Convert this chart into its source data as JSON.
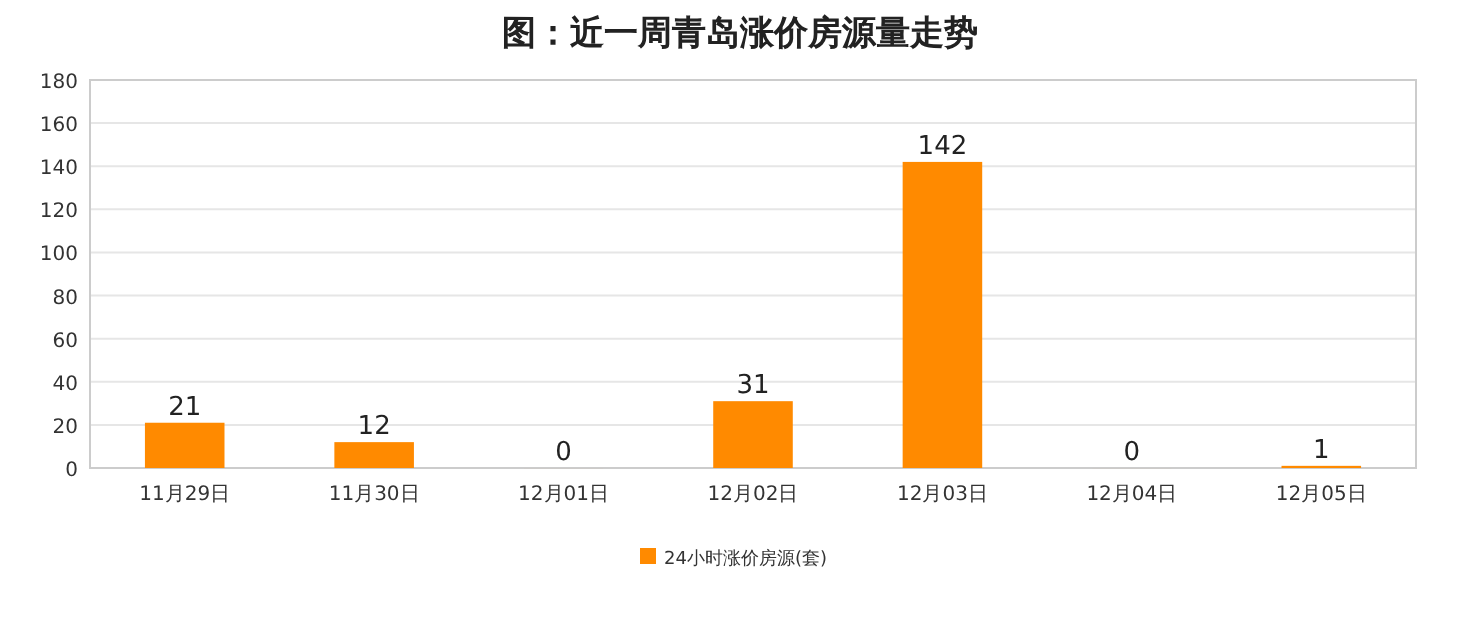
{
  "chart_data": {
    "type": "bar",
    "title": "图：近一周青岛涨价房源量走势",
    "categories": [
      "11月29日",
      "11月30日",
      "12月01日",
      "12月02日",
      "12月03日",
      "12月04日",
      "12月05日"
    ],
    "series": [
      {
        "name": "24小时涨价房源(套)",
        "color": "#ff8a00",
        "values": [
          21,
          12,
          0,
          31,
          142,
          0,
          1
        ]
      }
    ],
    "ylim": [
      0,
      180
    ],
    "yticks": [
      0,
      20,
      40,
      60,
      80,
      100,
      120,
      140,
      160,
      180
    ],
    "grid": "y",
    "legend": "bottom",
    "data_labels": true
  }
}
